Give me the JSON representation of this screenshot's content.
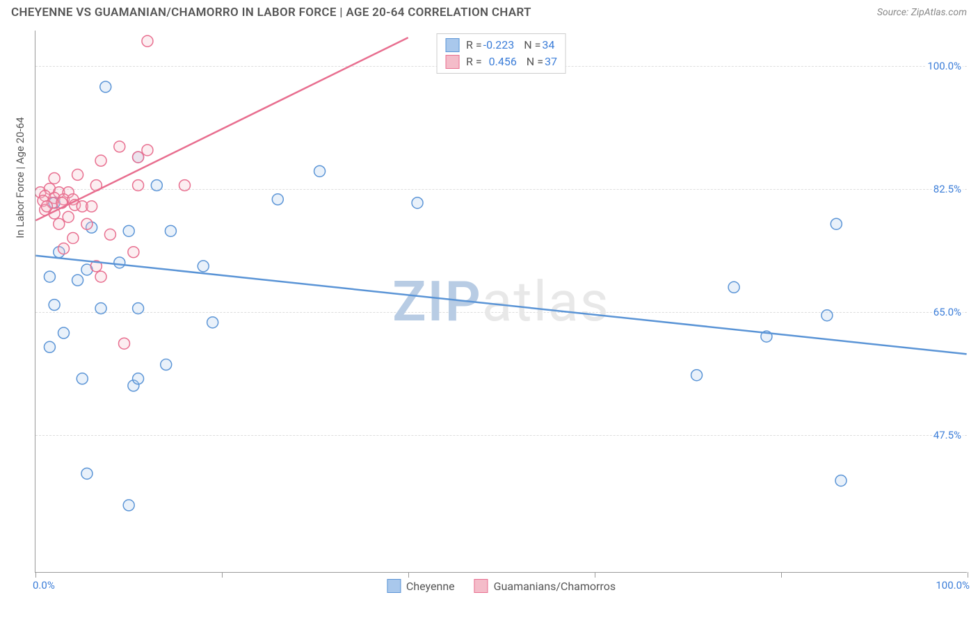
{
  "title": "CHEYENNE VS GUAMANIAN/CHAMORRO IN LABOR FORCE | AGE 20-64 CORRELATION CHART",
  "source": "Source: ZipAtlas.com",
  "ylabel": "In Labor Force | Age 20-64",
  "watermark": {
    "lead": "ZIP",
    "rest": "atlas"
  },
  "chart": {
    "type": "scatter",
    "xlim": [
      0,
      100
    ],
    "ylim": [
      28,
      105
    ],
    "xtick_positions": [
      0,
      20,
      40,
      60,
      80,
      100
    ],
    "xlim_labels": {
      "min": "0.0%",
      "max": "100.0%"
    },
    "yticks": [
      {
        "v": 47.5,
        "label": "47.5%"
      },
      {
        "v": 65.0,
        "label": "65.0%"
      },
      {
        "v": 82.5,
        "label": "82.5%"
      },
      {
        "v": 100.0,
        "label": "100.0%"
      }
    ],
    "background_color": "#ffffff",
    "grid_color": "#dddddd",
    "marker_radius": 8,
    "series": [
      {
        "key": "cheyenne",
        "label": "Cheyenne",
        "color_fill": "#a9c8ec",
        "color_stroke": "#5a94d6",
        "r": "-0.223",
        "n": "34",
        "trend": {
          "x1": 0,
          "y1": 73,
          "x2": 100,
          "y2": 59
        },
        "points": [
          {
            "x": 7.5,
            "y": 97
          },
          {
            "x": 11,
            "y": 87
          },
          {
            "x": 30.5,
            "y": 85
          },
          {
            "x": 13,
            "y": 83
          },
          {
            "x": 26,
            "y": 81
          },
          {
            "x": 41,
            "y": 80.5
          },
          {
            "x": 86,
            "y": 77.5
          },
          {
            "x": 2,
            "y": 80.5
          },
          {
            "x": 6,
            "y": 77
          },
          {
            "x": 10,
            "y": 76.5
          },
          {
            "x": 14.5,
            "y": 76.5
          },
          {
            "x": 2.5,
            "y": 73.5
          },
          {
            "x": 1.5,
            "y": 70
          },
          {
            "x": 18,
            "y": 71.5
          },
          {
            "x": 5.5,
            "y": 71
          },
          {
            "x": 9,
            "y": 72
          },
          {
            "x": 4.5,
            "y": 69.5
          },
          {
            "x": 75,
            "y": 68.5
          },
          {
            "x": 2,
            "y": 66
          },
          {
            "x": 7,
            "y": 65.5
          },
          {
            "x": 11,
            "y": 65.5
          },
          {
            "x": 85,
            "y": 64.5
          },
          {
            "x": 19,
            "y": 63.5
          },
          {
            "x": 3,
            "y": 62
          },
          {
            "x": 78.5,
            "y": 61.5
          },
          {
            "x": 14,
            "y": 57.5
          },
          {
            "x": 71,
            "y": 56
          },
          {
            "x": 5,
            "y": 55.5
          },
          {
            "x": 10.5,
            "y": 54.5
          },
          {
            "x": 11,
            "y": 55.5
          },
          {
            "x": 86.5,
            "y": 41
          },
          {
            "x": 5.5,
            "y": 42
          },
          {
            "x": 10,
            "y": 37.5
          },
          {
            "x": 1.5,
            "y": 60
          }
        ]
      },
      {
        "key": "guamanian",
        "label": "Guamanians/Chamorros",
        "color_fill": "#f4bcc9",
        "color_stroke": "#e86e8f",
        "r": "0.456",
        "n": "37",
        "trend": {
          "x1": 0,
          "y1": 78,
          "x2": 40,
          "y2": 104
        },
        "points": [
          {
            "x": 12,
            "y": 103.5
          },
          {
            "x": 9,
            "y": 88.5
          },
          {
            "x": 12,
            "y": 88
          },
          {
            "x": 7,
            "y": 86.5
          },
          {
            "x": 11,
            "y": 87
          },
          {
            "x": 4.5,
            "y": 84.5
          },
          {
            "x": 2,
            "y": 84
          },
          {
            "x": 6.5,
            "y": 83
          },
          {
            "x": 11,
            "y": 83
          },
          {
            "x": 16,
            "y": 83
          },
          {
            "x": 0.5,
            "y": 82
          },
          {
            "x": 1.5,
            "y": 82.5
          },
          {
            "x": 2.5,
            "y": 82
          },
          {
            "x": 3.5,
            "y": 82
          },
          {
            "x": 1,
            "y": 81.5
          },
          {
            "x": 2,
            "y": 81.2
          },
          {
            "x": 3,
            "y": 81
          },
          {
            "x": 4,
            "y": 81
          },
          {
            "x": 0.8,
            "y": 80.8
          },
          {
            "x": 1.8,
            "y": 80.5
          },
          {
            "x": 2.8,
            "y": 80.5
          },
          {
            "x": 4.2,
            "y": 80.2
          },
          {
            "x": 5,
            "y": 80
          },
          {
            "x": 6,
            "y": 80
          },
          {
            "x": 1,
            "y": 79.5
          },
          {
            "x": 2,
            "y": 79
          },
          {
            "x": 3.5,
            "y": 78.5
          },
          {
            "x": 2.5,
            "y": 77.5
          },
          {
            "x": 5.5,
            "y": 77.5
          },
          {
            "x": 8,
            "y": 76
          },
          {
            "x": 4,
            "y": 75.5
          },
          {
            "x": 3,
            "y": 74
          },
          {
            "x": 10.5,
            "y": 73.5
          },
          {
            "x": 6.5,
            "y": 71.5
          },
          {
            "x": 7,
            "y": 70
          },
          {
            "x": 9.5,
            "y": 60.5
          },
          {
            "x": 1.2,
            "y": 80
          }
        ]
      }
    ]
  }
}
